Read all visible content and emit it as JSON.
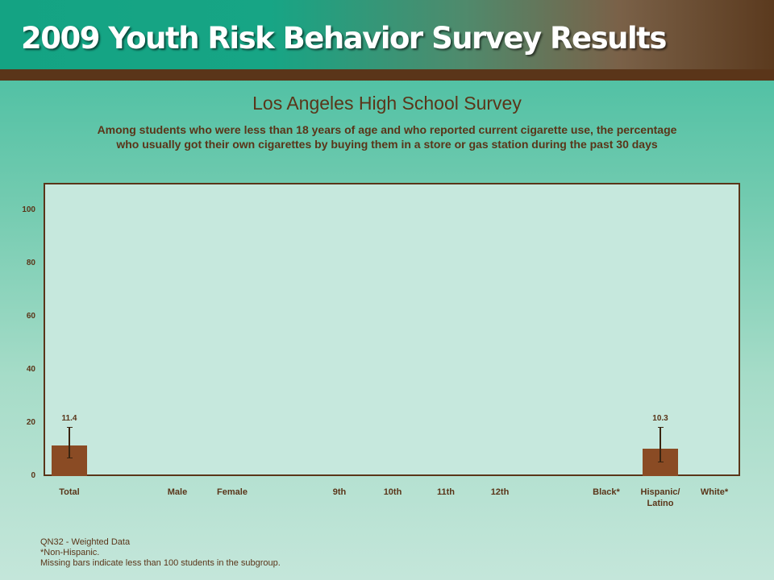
{
  "header": {
    "title": "2009 Youth Risk Behavior Survey Results"
  },
  "chart_data": {
    "type": "bar",
    "title": "Los Angeles High School Survey",
    "subtitle_line1": "Among students who were less than 18 years of age and who reported current cigarette use, the percentage",
    "subtitle_line2": "who usually got their own cigarettes by buying them in a store or gas station during the past 30 days",
    "categories": [
      "Total",
      "Male",
      "Female",
      "9th",
      "10th",
      "11th",
      "12th",
      "Black*",
      "Hispanic/\nLatino",
      "White*"
    ],
    "values": [
      11.4,
      null,
      null,
      null,
      null,
      null,
      null,
      null,
      10.3,
      null
    ],
    "error_low": [
      7.0,
      null,
      null,
      null,
      null,
      null,
      null,
      null,
      5.5,
      null
    ],
    "error_high": [
      18.5,
      null,
      null,
      null,
      null,
      null,
      null,
      null,
      18.5,
      null
    ],
    "ylim": [
      0,
      110
    ],
    "yticks": [
      0,
      20,
      40,
      60,
      80,
      100
    ],
    "bar_color": "#8a4b24",
    "grid": false
  },
  "footnotes": {
    "line1": "QN32 - Weighted Data",
    "line2": "*Non-Hispanic.",
    "line3": "Missing bars indicate less than 100 students in the subgroup."
  }
}
